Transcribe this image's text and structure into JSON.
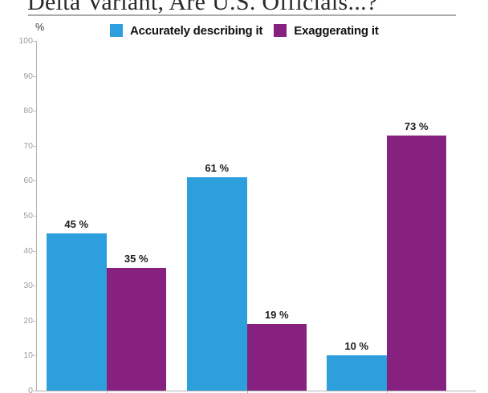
{
  "page": {
    "title": "Delta Variant, Are U.S. Officials...?",
    "axis_unit_label": "%"
  },
  "chart_data": {
    "type": "bar",
    "title": "Delta Variant, Are U.S. Officials...?",
    "categories": [
      "",
      "",
      ""
    ],
    "series": [
      {
        "name": "Accurately describing it",
        "color": "#2D9FDC",
        "values": [
          45,
          61,
          10
        ]
      },
      {
        "name": "Exaggerating it",
        "color": "#86217F",
        "values": [
          35,
          19,
          73
        ]
      }
    ],
    "value_labels": [
      [
        "45 %",
        "61 %",
        "10 %"
      ],
      [
        "35 %",
        "19 %",
        "73 %"
      ]
    ],
    "value_label_suffix": " %",
    "ylabel": "%",
    "ylim": [
      0,
      100
    ],
    "yticks": [
      0,
      10,
      20,
      30,
      40,
      50,
      60,
      70,
      80,
      90,
      100
    ],
    "grid": false,
    "legend_position": "top",
    "category_labels_visible": false
  }
}
